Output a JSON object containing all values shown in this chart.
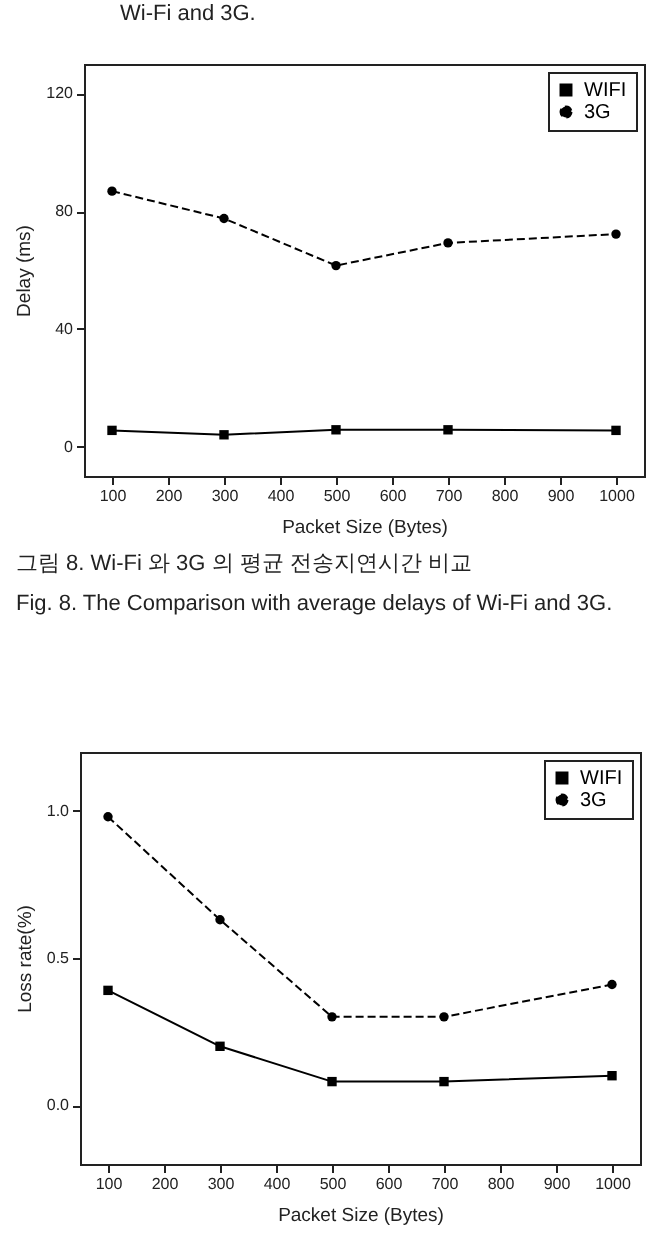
{
  "chart_data": [
    {
      "type": "line",
      "xlabel": "Packet Size (Bytes)",
      "ylabel": "Delay (ms)",
      "x": [
        100,
        300,
        500,
        700,
        1000
      ],
      "xlim": [
        50,
        1050
      ],
      "xticks": [
        100,
        200,
        300,
        400,
        500,
        600,
        700,
        800,
        900,
        1000
      ],
      "ylim": [
        -10,
        130
      ],
      "yticks": [
        0,
        40,
        80,
        120
      ],
      "grid": false,
      "legend": "top right",
      "series": [
        {
          "name": "WIFI",
          "color": "#000000",
          "marker": "square",
          "line_style": "solid",
          "values": [
            5.5,
            4,
            5.7,
            5.7,
            5.5
          ]
        },
        {
          "name": "3G",
          "color": "#000000",
          "marker": "circle",
          "line_style": "dashed",
          "values": [
            86.8,
            77.5,
            61.5,
            69.2,
            72.2
          ]
        }
      ],
      "annotations": [
        "Wi-Fi and 3G.",
        "그림 8. Wi-Fi 와 3G 의 평균 전송지연시간 비교",
        "Fig. 8. The Comparison with average delays of Wi-Fi and 3G."
      ]
    },
    {
      "type": "line",
      "xlabel": "Packet Size (Bytes)",
      "ylabel": "Loss rate(%)",
      "x": [
        100,
        300,
        500,
        700,
        1000
      ],
      "xlim": [
        50,
        1050
      ],
      "xticks": [
        100,
        200,
        300,
        400,
        500,
        600,
        700,
        800,
        900,
        1000
      ],
      "ylim": [
        -0.2,
        1.2
      ],
      "yticks": [
        {
          "value": 0,
          "label": "0.0"
        },
        {
          "value": 0.5,
          "label": "0.5"
        },
        {
          "value": 1,
          "label": "1.0"
        }
      ],
      "grid": false,
      "legend": "top right",
      "series": [
        {
          "name": "WIFI",
          "color": "#000000",
          "marker": "square",
          "line_style": "solid",
          "values": [
            0.39,
            0.2,
            0.08,
            0.08,
            0.1
          ]
        },
        {
          "name": "3G",
          "color": "#000000",
          "marker": "circle",
          "line_style": "dashed",
          "values": [
            0.98,
            0.63,
            0.3,
            0.3,
            0.41
          ]
        }
      ]
    }
  ]
}
